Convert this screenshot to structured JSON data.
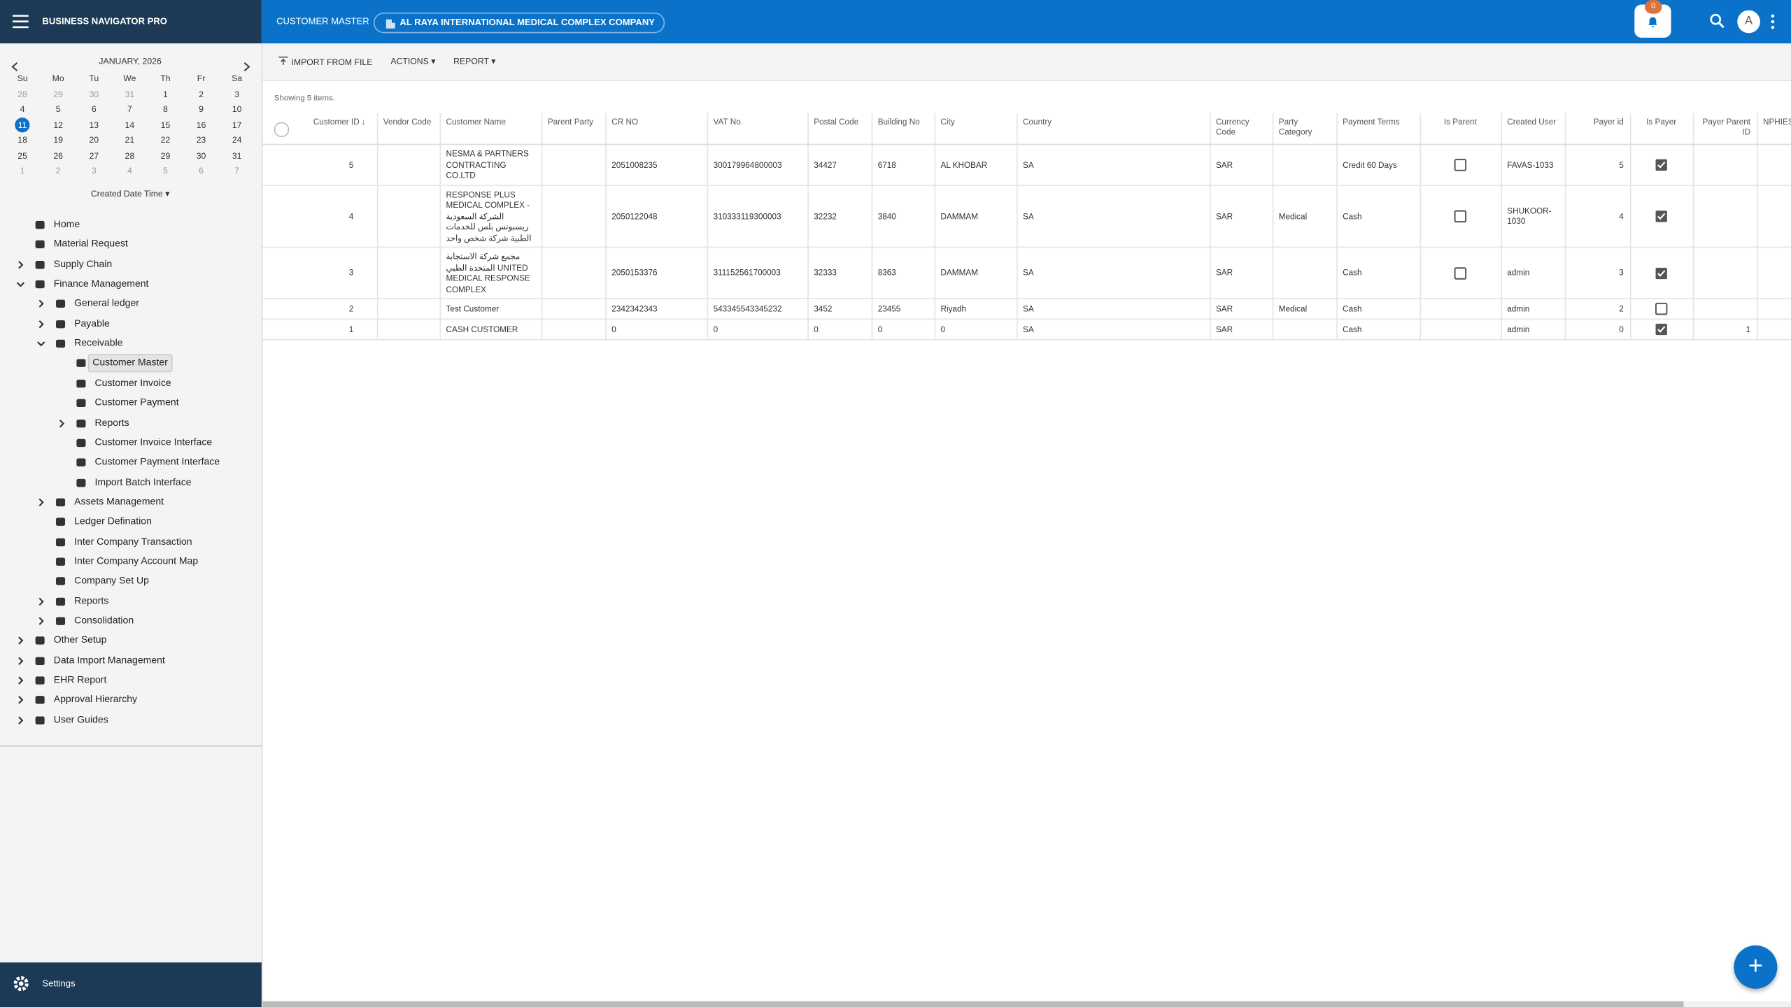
{
  "header": {
    "app_title": "BUSINESS NAVIGATOR PRO",
    "page_title": "CUSTOMER MASTER",
    "company": "AL RAYA INTERNATIONAL MEDICAL COMPLEX COMPANY",
    "notification_count": "0",
    "avatar": "A"
  },
  "calendar": {
    "month": "JANUARY, 2026",
    "weekdays": [
      "Su",
      "Mo",
      "Tu",
      "We",
      "Th",
      "Fr",
      "Sa"
    ],
    "weeks": [
      [
        "28",
        "29",
        "30",
        "31",
        "1",
        "2",
        "3"
      ],
      [
        "4",
        "5",
        "6",
        "7",
        "8",
        "9",
        "10"
      ],
      [
        "11",
        "12",
        "13",
        "14",
        "15",
        "16",
        "17"
      ],
      [
        "18",
        "19",
        "20",
        "21",
        "22",
        "23",
        "24"
      ],
      [
        "25",
        "26",
        "27",
        "28",
        "29",
        "30",
        "31"
      ],
      [
        "1",
        "2",
        "3",
        "4",
        "5",
        "6",
        "7"
      ]
    ],
    "today": "11",
    "filter": "Created Date Time"
  },
  "nav": [
    {
      "label": "Home",
      "level": 0,
      "state": null
    },
    {
      "label": "Material Request",
      "level": 0,
      "state": null
    },
    {
      "label": "Supply Chain",
      "level": 0,
      "state": "collapsed"
    },
    {
      "label": "Finance Management",
      "level": 0,
      "state": "expanded"
    },
    {
      "label": "General ledger",
      "level": 1,
      "state": "collapsed"
    },
    {
      "label": "Payable",
      "level": 1,
      "state": "collapsed"
    },
    {
      "label": "Receivable",
      "level": 1,
      "state": "expanded"
    },
    {
      "label": "Customer Master",
      "level": 2,
      "state": null,
      "selected": true
    },
    {
      "label": "Customer Invoice",
      "level": 2,
      "state": null
    },
    {
      "label": "Customer Payment",
      "level": 2,
      "state": null
    },
    {
      "label": "Reports",
      "level": 2,
      "state": "collapsed"
    },
    {
      "label": "Customer Invoice Interface",
      "level": 2,
      "state": null
    },
    {
      "label": "Customer Payment Interface",
      "level": 2,
      "state": null
    },
    {
      "label": "Import Batch Interface",
      "level": 2,
      "state": null
    },
    {
      "label": "Assets Management",
      "level": 1,
      "state": "collapsed"
    },
    {
      "label": "Ledger Defination",
      "level": 1,
      "state": null
    },
    {
      "label": "Inter Company Transaction",
      "level": 1,
      "state": null
    },
    {
      "label": "Inter Company Account Map",
      "level": 1,
      "state": null
    },
    {
      "label": "Company Set Up",
      "level": 1,
      "state": null
    },
    {
      "label": "Reports",
      "level": 1,
      "state": "collapsed"
    },
    {
      "label": "Consolidation",
      "level": 1,
      "state": "collapsed"
    },
    {
      "label": "Other Setup",
      "level": 0,
      "state": "collapsed"
    },
    {
      "label": "Data Import Management",
      "level": 0,
      "state": "collapsed"
    },
    {
      "label": "EHR Report",
      "level": 0,
      "state": "collapsed"
    },
    {
      "label": "Approval Hierarchy",
      "level": 0,
      "state": "collapsed"
    },
    {
      "label": "User Guides",
      "level": 0,
      "state": "collapsed"
    }
  ],
  "settings": "Settings",
  "toolbar": {
    "import": "IMPORT FROM FILE",
    "actions": "ACTIONS",
    "report": "REPORT"
  },
  "table": {
    "summary": "Showing 5 items.",
    "columns": [
      "Customer ID",
      "Vendor Code",
      "Customer Name",
      "Parent Party",
      "CR NO",
      "VAT No.",
      "Postal Code",
      "Building No",
      "City",
      "Country",
      "Currency Code",
      "Party Category",
      "Payment Terms",
      "Is Parent",
      "Created User",
      "Payer id",
      "Is Payer",
      "Payer Parent ID",
      "NPHIES"
    ],
    "rows": [
      [
        "5",
        null,
        "NESMA & PARTNERS CONTRACTING CO.LTD",
        null,
        "2051008235",
        "300179964800003",
        "34427",
        "6718",
        "AL KHOBAR",
        "SA",
        "SAR",
        null,
        "Credit 60 Days",
        false,
        "FAVAS-1033",
        "5",
        true,
        null,
        null
      ],
      [
        "4",
        null,
        "RESPONSE PLUS MEDICAL COMPLEX - الشركة السعودية ريسبونس بلس للخدمات الطبية شركة شخص واحد",
        null,
        "2050122048",
        "310333119300003",
        "32232",
        "3840",
        "DAMMAM",
        "SA",
        "SAR",
        "Medical",
        "Cash",
        false,
        "SHUKOOR-1030",
        "4",
        true,
        null,
        null
      ],
      [
        "3",
        null,
        "مجمع شركة الاستجابة المتحدة الطبي UNITED MEDICAL RESPONSE COMPLEX",
        null,
        "2050153376",
        "311152561700003",
        "32333",
        "8363",
        "DAMMAM",
        "SA",
        "SAR",
        null,
        "Cash",
        false,
        "admin",
        "3",
        true,
        null,
        null
      ],
      [
        "2",
        null,
        "Test Customer",
        null,
        "2342342343",
        "543345543345232",
        "3452",
        "23455",
        "Riyadh",
        "SA",
        "SAR",
        "Medical",
        "Cash",
        null,
        "admin",
        "2",
        false,
        null,
        null
      ],
      [
        "1",
        null,
        "CASH CUSTOMER",
        null,
        "0",
        "0",
        "0",
        "0",
        "0",
        "SA",
        "SAR",
        null,
        "Cash",
        null,
        "admin",
        "0",
        true,
        "1",
        null
      ]
    ]
  }
}
